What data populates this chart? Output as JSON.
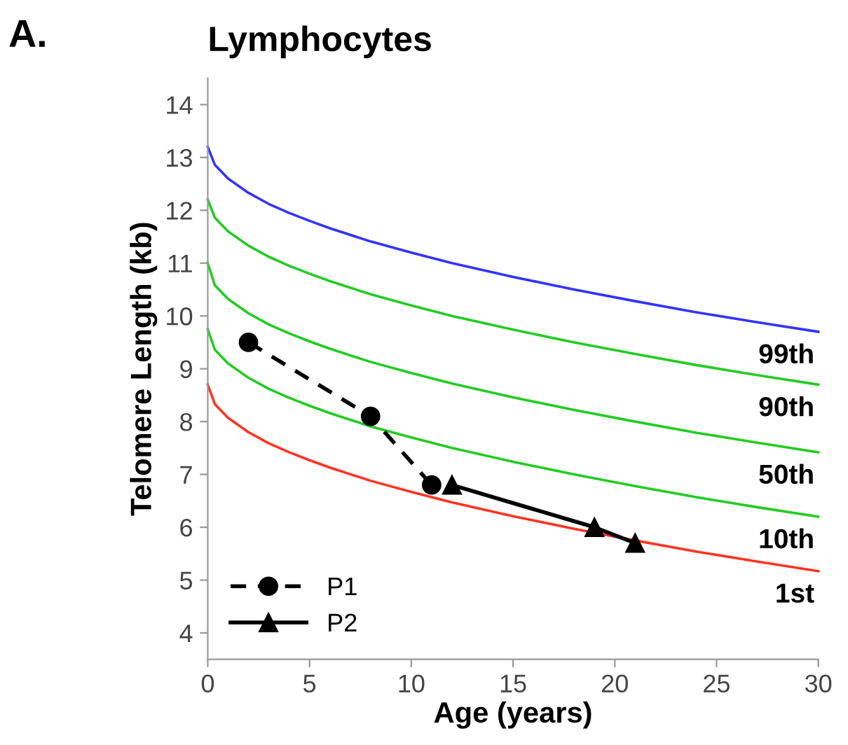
{
  "chart_data": {
    "type": "line",
    "title": "Lymphocytes",
    "xlabel": "Age (years)",
    "ylabel": "Telomere Length (kb)",
    "xlim": [
      0,
      30
    ],
    "ylim": [
      3.5,
      14.5
    ],
    "xticks": [
      0,
      5,
      10,
      15,
      20,
      25,
      30
    ],
    "yticks": [
      4,
      5,
      6,
      7,
      8,
      9,
      10,
      11,
      12,
      13,
      14
    ],
    "grid": false,
    "legend": "bottom left",
    "series": [
      {
        "color": "#3333ff",
        "marker": "none",
        "line_style": "solid",
        "x": [
          0,
          0.35,
          1,
          2,
          3,
          4,
          5,
          6,
          8,
          10,
          12,
          15,
          18,
          21,
          24,
          27,
          30
        ],
        "values": [
          13.2,
          12.86,
          12.6,
          12.33,
          12.12,
          11.95,
          11.8,
          11.66,
          11.41,
          11.2,
          11.0,
          10.74,
          10.5,
          10.28,
          10.07,
          9.88,
          9.7
        ]
      },
      {
        "color": "#22cc22",
        "marker": "none",
        "line_style": "solid",
        "x": [
          0,
          0.35,
          1,
          2,
          3,
          4,
          5,
          6,
          8,
          10,
          12,
          15,
          18,
          21,
          24,
          27,
          30
        ],
        "values": [
          12.2,
          11.86,
          11.6,
          11.33,
          11.12,
          10.95,
          10.8,
          10.66,
          10.41,
          10.2,
          10.0,
          9.74,
          9.5,
          9.28,
          9.07,
          8.88,
          8.7
        ]
      },
      {
        "color": "#22cc22",
        "marker": "none",
        "line_style": "solid",
        "x": [
          0,
          0.35,
          1,
          2,
          3,
          4,
          5,
          6,
          8,
          10,
          12,
          15,
          18,
          21,
          24,
          27,
          30
        ],
        "values": [
          11.0,
          10.58,
          10.32,
          10.05,
          9.84,
          9.67,
          9.52,
          9.38,
          9.13,
          8.92,
          8.72,
          8.46,
          8.22,
          8.0,
          7.79,
          7.6,
          7.42
        ]
      },
      {
        "color": "#22cc22",
        "marker": "none",
        "line_style": "solid",
        "x": [
          0,
          0.35,
          1,
          2,
          3,
          4,
          5,
          6,
          8,
          10,
          12,
          15,
          18,
          21,
          24,
          27,
          30
        ],
        "values": [
          9.75,
          9.36,
          9.1,
          8.83,
          8.62,
          8.45,
          8.3,
          8.16,
          7.91,
          7.7,
          7.5,
          7.24,
          7.0,
          6.78,
          6.57,
          6.38,
          6.2
        ]
      },
      {
        "color": "#ff3322",
        "marker": "none",
        "line_style": "solid",
        "x": [
          0,
          0.35,
          1,
          2,
          3,
          4,
          5,
          6,
          8,
          10,
          12,
          15,
          18,
          21,
          24,
          27,
          30
        ],
        "values": [
          8.7,
          8.33,
          8.07,
          7.8,
          7.59,
          7.42,
          7.27,
          7.13,
          6.88,
          6.67,
          6.47,
          6.21,
          5.97,
          5.75,
          5.54,
          5.35,
          5.17
        ]
      },
      {
        "name": "P1",
        "color": "#000000",
        "marker": "circle",
        "line_style": "dashed",
        "x": [
          2,
          8,
          11
        ],
        "values": [
          9.5,
          8.1,
          6.8
        ]
      },
      {
        "name": "P2",
        "color": "#000000",
        "marker": "triangle",
        "line_style": "solid",
        "x": [
          12,
          19,
          21
        ],
        "values": [
          6.8,
          6.0,
          5.7
        ]
      }
    ],
    "annotations": [
      "A.",
      {
        "text": "99th",
        "y": 9.7
      },
      {
        "text": "90th",
        "y": 8.7
      },
      {
        "text": "50th",
        "y": 7.42
      },
      {
        "text": "10th",
        "y": 6.2
      },
      {
        "text": "1st",
        "y": 5.17
      }
    ]
  }
}
